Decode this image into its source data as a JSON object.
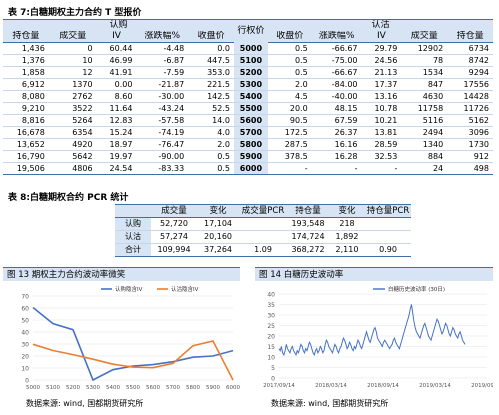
{
  "table7": {
    "caption": "表 7:白糖期权主力合约 T 型报价",
    "call_group": "认购",
    "put_group": "认沽",
    "strike_header": "行权价",
    "call_columns": [
      "持仓量",
      "成交量",
      "IV",
      "涨跌幅%",
      "收盘价"
    ],
    "put_columns": [
      "收盘价",
      "涨跌幅%",
      "IV",
      "成交量",
      "持仓量"
    ],
    "rows": [
      {
        "call": [
          "1,436",
          "0",
          "60.44",
          "-4.48",
          "0.0"
        ],
        "strike": "5000",
        "put": [
          "0.5",
          "-66.67",
          "29.79",
          "12902",
          "6734"
        ]
      },
      {
        "call": [
          "1,376",
          "10",
          "46.99",
          "-6.87",
          "447.5"
        ],
        "strike": "5100",
        "put": [
          "0.5",
          "-75.00",
          "24.56",
          "78",
          "8742"
        ]
      },
      {
        "call": [
          "1,858",
          "12",
          "41.91",
          "-7.59",
          "353.0"
        ],
        "strike": "5200",
        "put": [
          "0.5",
          "-66.67",
          "21.13",
          "1534",
          "9294"
        ]
      },
      {
        "call": [
          "6,912",
          "1370",
          "0.00",
          "-21.87",
          "221.5"
        ],
        "strike": "5300",
        "put": [
          "2.0",
          "-84.00",
          "17.37",
          "847",
          "17556"
        ]
      },
      {
        "call": [
          "8,080",
          "2762",
          "8.60",
          "-30.00",
          "142.5"
        ],
        "strike": "5400",
        "put": [
          "4.5",
          "-40.00",
          "13.16",
          "4630",
          "14428"
        ]
      },
      {
        "call": [
          "9,210",
          "3522",
          "11.64",
          "-43.24",
          "52.5"
        ],
        "strike": "5500",
        "put": [
          "20.0",
          "48.15",
          "10.78",
          "11758",
          "11726"
        ]
      },
      {
        "call": [
          "8,816",
          "5264",
          "12.83",
          "-57.58",
          "14.0"
        ],
        "strike": "5600",
        "put": [
          "90.5",
          "67.59",
          "10.21",
          "5116",
          "5162"
        ]
      },
      {
        "call": [
          "16,678",
          "6354",
          "15.24",
          "-74.19",
          "4.0"
        ],
        "strike": "5700",
        "put": [
          "172.5",
          "26.37",
          "13.81",
          "2494",
          "3096"
        ]
      },
      {
        "call": [
          "13,652",
          "4920",
          "18.97",
          "-76.47",
          "2.0"
        ],
        "strike": "5800",
        "put": [
          "287.5",
          "16.16",
          "28.59",
          "1340",
          "1730"
        ]
      },
      {
        "call": [
          "16,790",
          "5642",
          "19.97",
          "-90.00",
          "0.5"
        ],
        "strike": "5900",
        "put": [
          "378.5",
          "16.28",
          "32.53",
          "884",
          "912"
        ]
      },
      {
        "call": [
          "19,506",
          "4806",
          "24.54",
          "-83.33",
          "0.5"
        ],
        "strike": "6000",
        "put": [
          "-",
          "-",
          "-",
          "24",
          "498"
        ]
      }
    ]
  },
  "table8": {
    "caption": "表 8:白糖期权合约 PCR 统计",
    "columns": [
      "",
      "成交量",
      "变化",
      "成交量PCR",
      "持仓量",
      "变化",
      "持仓量PCR"
    ],
    "rows": [
      [
        "认购",
        "52,720",
        "17,104",
        "",
        "193,548",
        "218",
        ""
      ],
      [
        "认沽",
        "57,274",
        "20,160",
        "",
        "174,724",
        "1,892",
        ""
      ],
      [
        "合计",
        "109,994",
        "37,264",
        "1.09",
        "368,272",
        "2,110",
        "0.90"
      ]
    ]
  },
  "fig13": {
    "caption": "图 13 期权主力合约波动率微笑",
    "source": "数据来源: wind, 国都期货研究所",
    "colors": {
      "call": "#4472c4",
      "put": "#ed7d31"
    },
    "chart_data": {
      "type": "line",
      "x": [
        "5000",
        "5100",
        "5200",
        "5300",
        "5400",
        "5500",
        "5600",
        "5700",
        "5800",
        "5900",
        "6000"
      ],
      "ylim": [
        0,
        70
      ],
      "yticks": [
        "0",
        "10",
        "20",
        "30",
        "40",
        "50",
        "60",
        "70"
      ],
      "series": [
        {
          "name": "认购隐含IV",
          "values": [
            60.44,
            46.99,
            41.91,
            0.0,
            8.6,
            11.64,
            12.83,
            15.24,
            18.97,
            19.97,
            24.54
          ]
        },
        {
          "name": "认沽隐含IV",
          "values": [
            29.79,
            24.56,
            21.13,
            17.37,
            13.16,
            10.78,
            10.21,
            13.81,
            28.59,
            32.53,
            0
          ]
        }
      ]
    }
  },
  "fig14": {
    "caption": "图 14 白糖历史波动率",
    "source": "数据来源: wind, 国都期货研究所",
    "colors": {
      "line": "#4472c4"
    },
    "chart_data": {
      "type": "line",
      "ylim": [
        0,
        40
      ],
      "yticks": [
        "0",
        "5",
        "10",
        "15",
        "20",
        "25",
        "30",
        "35",
        "40"
      ],
      "x_tick_labels": [
        "2017/09/14",
        "2018/03/14",
        "2018/09/14",
        "2019/03/14",
        "2019/09/14"
      ],
      "series": [
        {
          "name": "白糖历史波动率 (30日)",
          "values": [
            14,
            13,
            15,
            12,
            11,
            13,
            16,
            14,
            13,
            12,
            14,
            15,
            13,
            12,
            11,
            13,
            12,
            14,
            16,
            15,
            13,
            12,
            14,
            13,
            15,
            17,
            16,
            14,
            12,
            11,
            13,
            14,
            12,
            13,
            15,
            14,
            12,
            13,
            16,
            18,
            17,
            15,
            14,
            13,
            12,
            14,
            16,
            15,
            13,
            12,
            14,
            15,
            17,
            19,
            18,
            16,
            14,
            15,
            17,
            16,
            14,
            13,
            15,
            14,
            16,
            18,
            17,
            15,
            14,
            16,
            18,
            20,
            22,
            20,
            18,
            17,
            19,
            21,
            23,
            24,
            22,
            19,
            18,
            17,
            16,
            15,
            17,
            18,
            17,
            16,
            15,
            14,
            15,
            16,
            18,
            19,
            17,
            16,
            15,
            14,
            16,
            18,
            20,
            22,
            24,
            26,
            28,
            30,
            33,
            35,
            31,
            27,
            24,
            22,
            21,
            20,
            19,
            21,
            23,
            25,
            26,
            24,
            22,
            20,
            19,
            18,
            20,
            22,
            24,
            26,
            28,
            27,
            25,
            23,
            21,
            22,
            24,
            26,
            25,
            23,
            21,
            20,
            22,
            24,
            23,
            21,
            20,
            19,
            21,
            22,
            20,
            18,
            17,
            16
          ]
        }
      ]
    }
  }
}
